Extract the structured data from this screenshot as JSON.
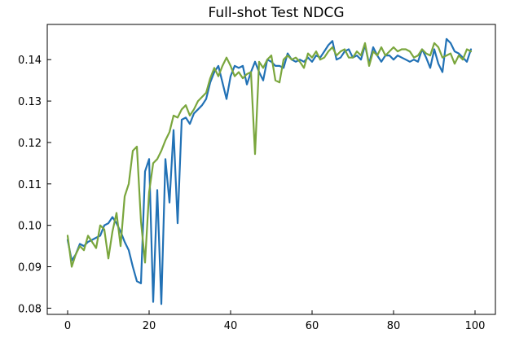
{
  "chart_data": {
    "type": "line",
    "title": "Full-shot Test NDCG",
    "xlabel": "",
    "ylabel": "",
    "xlim": [
      -5,
      105
    ],
    "ylim": [
      0.0785,
      0.1485
    ],
    "xticks": [
      0,
      20,
      40,
      60,
      80,
      100
    ],
    "yticks": [
      0.08,
      0.09,
      0.1,
      0.11,
      0.12,
      0.13,
      0.14
    ],
    "grid": false,
    "series": [
      {
        "color": "#2171b5",
        "x": [
          0,
          1,
          2,
          3,
          4,
          5,
          6,
          7,
          8,
          9,
          10,
          11,
          12,
          13,
          14,
          15,
          16,
          17,
          18,
          19,
          20,
          21,
          22,
          23,
          24,
          25,
          26,
          27,
          28,
          29,
          30,
          31,
          32,
          33,
          34,
          35,
          36,
          37,
          38,
          39,
          40,
          41,
          42,
          43,
          44,
          45,
          46,
          47,
          48,
          49,
          50,
          51,
          52,
          53,
          54,
          55,
          56,
          57,
          58,
          59,
          60,
          61,
          62,
          63,
          64,
          65,
          66,
          67,
          68,
          69,
          70,
          71,
          72,
          73,
          74,
          75,
          76,
          77,
          78,
          79,
          80,
          81,
          82,
          83,
          84,
          85,
          86,
          87,
          88,
          89,
          90,
          91,
          92,
          93,
          94,
          95,
          96,
          97,
          98,
          99
        ],
        "y": [
          0.0965,
          0.0915,
          0.093,
          0.0955,
          0.095,
          0.096,
          0.0965,
          0.097,
          0.0975,
          0.1,
          0.1005,
          0.102,
          0.1005,
          0.0985,
          0.096,
          0.094,
          0.09,
          0.0865,
          0.086,
          0.113,
          0.116,
          0.0815,
          0.1085,
          0.081,
          0.116,
          0.1055,
          0.123,
          0.1005,
          0.1255,
          0.126,
          0.1245,
          0.127,
          0.128,
          0.129,
          0.1305,
          0.1345,
          0.137,
          0.1385,
          0.1345,
          0.1305,
          0.136,
          0.1385,
          0.138,
          0.1385,
          0.134,
          0.137,
          0.1395,
          0.137,
          0.135,
          0.14,
          0.1395,
          0.1385,
          0.1385,
          0.138,
          0.1415,
          0.14,
          0.1395,
          0.14,
          0.1395,
          0.1405,
          0.1395,
          0.141,
          0.1405,
          0.142,
          0.1435,
          0.1445,
          0.14,
          0.1405,
          0.142,
          0.1425,
          0.1405,
          0.141,
          0.14,
          0.1435,
          0.139,
          0.143,
          0.141,
          0.1395,
          0.141,
          0.141,
          0.14,
          0.141,
          0.1405,
          0.14,
          0.1395,
          0.14,
          0.1395,
          0.1425,
          0.1405,
          0.138,
          0.1425,
          0.139,
          0.137,
          0.145,
          0.144,
          0.142,
          0.1415,
          0.1405,
          0.1395,
          0.1425
        ]
      },
      {
        "color": "#7aa63d",
        "x": [
          0,
          1,
          2,
          3,
          4,
          5,
          6,
          7,
          8,
          9,
          10,
          11,
          12,
          13,
          14,
          15,
          16,
          17,
          18,
          19,
          20,
          21,
          22,
          23,
          24,
          25,
          26,
          27,
          28,
          29,
          30,
          31,
          32,
          33,
          34,
          35,
          36,
          37,
          38,
          39,
          40,
          41,
          42,
          43,
          44,
          45,
          46,
          47,
          48,
          49,
          50,
          51,
          52,
          53,
          54,
          55,
          56,
          57,
          58,
          59,
          60,
          61,
          62,
          63,
          64,
          65,
          66,
          67,
          68,
          69,
          70,
          71,
          72,
          73,
          74,
          75,
          76,
          77,
          78,
          79,
          80,
          81,
          82,
          83,
          84,
          85,
          86,
          87,
          88,
          89,
          90,
          91,
          92,
          93,
          94,
          95,
          96,
          97,
          98,
          99
        ],
        "y": [
          0.0975,
          0.09,
          0.093,
          0.095,
          0.094,
          0.0975,
          0.096,
          0.0945,
          0.1,
          0.099,
          0.092,
          0.0985,
          0.103,
          0.095,
          0.107,
          0.11,
          0.118,
          0.119,
          0.101,
          0.091,
          0.108,
          0.115,
          0.116,
          0.118,
          0.1205,
          0.1225,
          0.1265,
          0.126,
          0.128,
          0.129,
          0.1265,
          0.128,
          0.13,
          0.131,
          0.132,
          0.1355,
          0.138,
          0.136,
          0.1385,
          0.1405,
          0.1385,
          0.136,
          0.137,
          0.1355,
          0.1365,
          0.137,
          0.1172,
          0.1395,
          0.138,
          0.14,
          0.141,
          0.135,
          0.1345,
          0.14,
          0.141,
          0.14,
          0.1405,
          0.1395,
          0.138,
          0.1415,
          0.1405,
          0.142,
          0.14,
          0.1405,
          0.142,
          0.143,
          0.141,
          0.142,
          0.1425,
          0.1405,
          0.1405,
          0.142,
          0.141,
          0.144,
          0.1385,
          0.142,
          0.141,
          0.143,
          0.141,
          0.142,
          0.143,
          0.142,
          0.1425,
          0.1425,
          0.142,
          0.1405,
          0.141,
          0.1425,
          0.1415,
          0.141,
          0.144,
          0.143,
          0.1405,
          0.141,
          0.1415,
          0.139,
          0.141,
          0.14,
          0.1425,
          0.142
        ]
      }
    ]
  }
}
